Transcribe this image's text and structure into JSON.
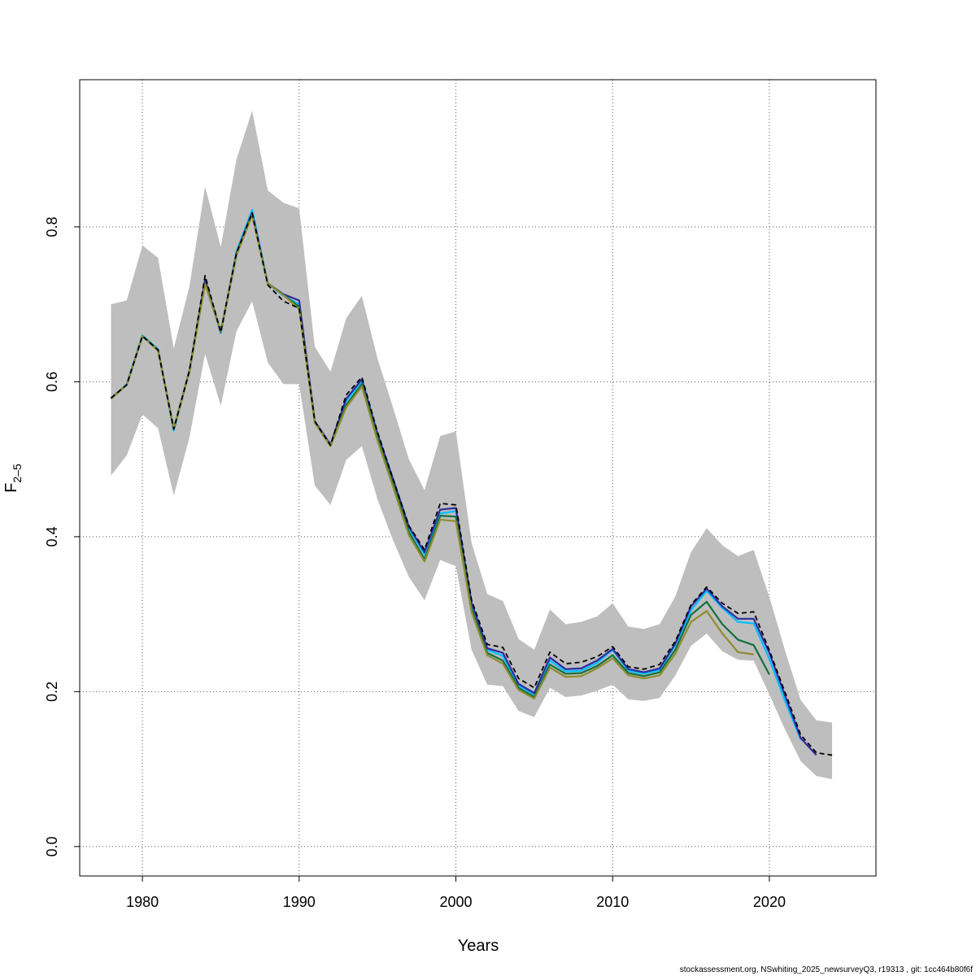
{
  "chart_data": {
    "type": "line",
    "title": "",
    "xlabel": "Years",
    "ylabel_main": "F",
    "ylabel_sub": "2–5",
    "xlim": [
      1976,
      2026.8
    ],
    "ylim": [
      -0.038,
      0.99
    ],
    "xticks": [
      1980,
      1990,
      2000,
      2010,
      2020
    ],
    "yticks": [
      0.0,
      0.2,
      0.4,
      0.6,
      0.8
    ],
    "ytick_labels": [
      "0.0",
      "0.2",
      "0.4",
      "0.6",
      "0.8"
    ],
    "grid": true,
    "confidence_band": {
      "color": "#bebebe",
      "x": [
        1978,
        1979,
        1980,
        1981,
        1982,
        1983,
        1984,
        1985,
        1986,
        1987,
        1988,
        1989,
        1990,
        1991,
        1992,
        1993,
        1994,
        1995,
        1996,
        1997,
        1998,
        1999,
        2000,
        2001,
        2002,
        2003,
        2004,
        2005,
        2006,
        2007,
        2008,
        2009,
        2010,
        2011,
        2012,
        2013,
        2014,
        2015,
        2016,
        2017,
        2018,
        2019,
        2020,
        2021,
        2022,
        2023,
        2024
      ],
      "lower": [
        0.479,
        0.505,
        0.558,
        0.54,
        0.453,
        0.528,
        0.636,
        0.569,
        0.665,
        0.704,
        0.625,
        0.597,
        0.597,
        0.466,
        0.441,
        0.499,
        0.517,
        0.448,
        0.395,
        0.348,
        0.318,
        0.37,
        0.362,
        0.254,
        0.209,
        0.207,
        0.175,
        0.167,
        0.205,
        0.193,
        0.195,
        0.201,
        0.209,
        0.19,
        0.188,
        0.192,
        0.221,
        0.259,
        0.275,
        0.252,
        0.241,
        0.24,
        0.196,
        0.151,
        0.11,
        0.091,
        0.087
      ],
      "upper": [
        0.7,
        0.705,
        0.776,
        0.76,
        0.643,
        0.723,
        0.852,
        0.774,
        0.887,
        0.95,
        0.847,
        0.831,
        0.824,
        0.645,
        0.613,
        0.682,
        0.711,
        0.63,
        0.566,
        0.5,
        0.46,
        0.53,
        0.536,
        0.392,
        0.326,
        0.317,
        0.268,
        0.254,
        0.306,
        0.287,
        0.29,
        0.297,
        0.314,
        0.284,
        0.281,
        0.287,
        0.323,
        0.38,
        0.411,
        0.389,
        0.375,
        0.383,
        0.322,
        0.253,
        0.189,
        0.163,
        0.16
      ]
    },
    "series": [
      {
        "color": "#00bfff",
        "dashed": false,
        "x": [
          1978,
          1979,
          1980,
          1981,
          1982,
          1983,
          1984,
          1985,
          1986,
          1987,
          1988,
          1989,
          1990,
          1991,
          1992,
          1993,
          1994,
          1995,
          1996,
          1997,
          1998,
          1999,
          2000,
          2001,
          2002,
          2003,
          2004,
          2005,
          2006,
          2007,
          2008,
          2009,
          2010,
          2011,
          2012,
          2013,
          2014,
          2015,
          2016,
          2017,
          2018,
          2019,
          2020,
          2021,
          2022
        ],
        "y": [
          0.578,
          0.597,
          0.66,
          0.642,
          0.537,
          0.615,
          0.73,
          0.663,
          0.768,
          0.822,
          0.727,
          0.711,
          0.7,
          0.548,
          0.518,
          0.575,
          0.601,
          0.531,
          0.472,
          0.411,
          0.377,
          0.43,
          0.433,
          0.313,
          0.254,
          0.246,
          0.208,
          0.196,
          0.24,
          0.226,
          0.227,
          0.237,
          0.254,
          0.227,
          0.223,
          0.228,
          0.26,
          0.305,
          0.33,
          0.308,
          0.29,
          0.288,
          0.242,
          0.188,
          0.138
        ]
      },
      {
        "color": "#2e2ba0",
        "dashed": false,
        "x": [
          1978,
          1979,
          1980,
          1981,
          1982,
          1983,
          1984,
          1985,
          1986,
          1987,
          1988,
          1989,
          1990,
          1991,
          1992,
          1993,
          1994,
          1995,
          1996,
          1997,
          1998,
          1999,
          2000,
          2001,
          2002,
          2003,
          2004,
          2005,
          2006,
          2007,
          2008,
          2009,
          2010,
          2011,
          2012,
          2013,
          2014,
          2015,
          2016,
          2017,
          2018,
          2019,
          2020,
          2021,
          2022,
          2023
        ],
        "y": [
          0.579,
          0.596,
          0.659,
          0.641,
          0.539,
          0.614,
          0.732,
          0.664,
          0.766,
          0.818,
          0.727,
          0.713,
          0.705,
          0.549,
          0.519,
          0.578,
          0.603,
          0.533,
          0.474,
          0.413,
          0.38,
          0.435,
          0.437,
          0.315,
          0.256,
          0.25,
          0.21,
          0.198,
          0.244,
          0.229,
          0.23,
          0.24,
          0.255,
          0.229,
          0.225,
          0.23,
          0.262,
          0.31,
          0.333,
          0.31,
          0.294,
          0.294,
          0.25,
          0.195,
          0.14,
          0.118
        ]
      },
      {
        "color": "#15703c",
        "dashed": false,
        "x": [
          1978,
          1979,
          1980,
          1981,
          1982,
          1983,
          1984,
          1985,
          1986,
          1987,
          1988,
          1989,
          1990,
          1991,
          1992,
          1993,
          1994,
          1995,
          1996,
          1997,
          1998,
          1999,
          2000,
          2001,
          2002,
          2003,
          2004,
          2005,
          2006,
          2007,
          2008,
          2009,
          2010,
          2011,
          2012,
          2013,
          2014,
          2015,
          2016,
          2017,
          2018,
          2019,
          2020
        ],
        "y": [
          0.579,
          0.596,
          0.659,
          0.641,
          0.539,
          0.614,
          0.727,
          0.665,
          0.764,
          0.816,
          0.727,
          0.712,
          0.697,
          0.548,
          0.518,
          0.57,
          0.597,
          0.528,
          0.468,
          0.406,
          0.371,
          0.427,
          0.426,
          0.307,
          0.25,
          0.24,
          0.205,
          0.193,
          0.235,
          0.223,
          0.224,
          0.233,
          0.247,
          0.224,
          0.22,
          0.225,
          0.254,
          0.299,
          0.316,
          0.287,
          0.267,
          0.26,
          0.222
        ]
      },
      {
        "color": "#8e8c2e",
        "dashed": false,
        "x": [
          1978,
          1979,
          1980,
          1981,
          1982,
          1983,
          1984,
          1985,
          1986,
          1987,
          1988,
          1989,
          1990,
          1991,
          1992,
          1993,
          1994,
          1995,
          1996,
          1997,
          1998,
          1999,
          2000,
          2001,
          2002,
          2003,
          2004,
          2005,
          2006,
          2007,
          2008,
          2009,
          2010,
          2011,
          2012,
          2013,
          2014,
          2015,
          2016,
          2017,
          2018,
          2019
        ],
        "y": [
          0.578,
          0.596,
          0.659,
          0.64,
          0.54,
          0.613,
          0.726,
          0.665,
          0.763,
          0.815,
          0.727,
          0.712,
          0.694,
          0.547,
          0.517,
          0.567,
          0.594,
          0.524,
          0.464,
          0.402,
          0.368,
          0.422,
          0.42,
          0.303,
          0.247,
          0.236,
          0.202,
          0.191,
          0.231,
          0.219,
          0.22,
          0.23,
          0.243,
          0.221,
          0.217,
          0.221,
          0.249,
          0.29,
          0.304,
          0.275,
          0.251,
          0.248
        ]
      },
      {
        "color": "#000000",
        "dashed": true,
        "x": [
          1978,
          1979,
          1980,
          1981,
          1982,
          1983,
          1984,
          1985,
          1986,
          1987,
          1988,
          1989,
          1990,
          1991,
          1992,
          1993,
          1994,
          1995,
          1996,
          1997,
          1998,
          1999,
          2000,
          2001,
          2002,
          2003,
          2004,
          2005,
          2006,
          2007,
          2008,
          2009,
          2010,
          2011,
          2012,
          2013,
          2014,
          2015,
          2016,
          2017,
          2018,
          2019,
          2020,
          2021,
          2022,
          2023,
          2024
        ],
        "y": [
          0.579,
          0.596,
          0.659,
          0.641,
          0.539,
          0.614,
          0.737,
          0.664,
          0.766,
          0.818,
          0.725,
          0.704,
          0.695,
          0.549,
          0.518,
          0.583,
          0.606,
          0.535,
          0.474,
          0.414,
          0.383,
          0.443,
          0.441,
          0.318,
          0.261,
          0.257,
          0.217,
          0.205,
          0.251,
          0.236,
          0.238,
          0.245,
          0.258,
          0.232,
          0.229,
          0.235,
          0.265,
          0.312,
          0.335,
          0.314,
          0.301,
          0.303,
          0.253,
          0.199,
          0.144,
          0.121,
          0.118
        ]
      }
    ]
  },
  "footer": "stockassessment.org, NSwhiting_2025_newsurveyQ3, r19313 , git: 1cc464b80f6f"
}
